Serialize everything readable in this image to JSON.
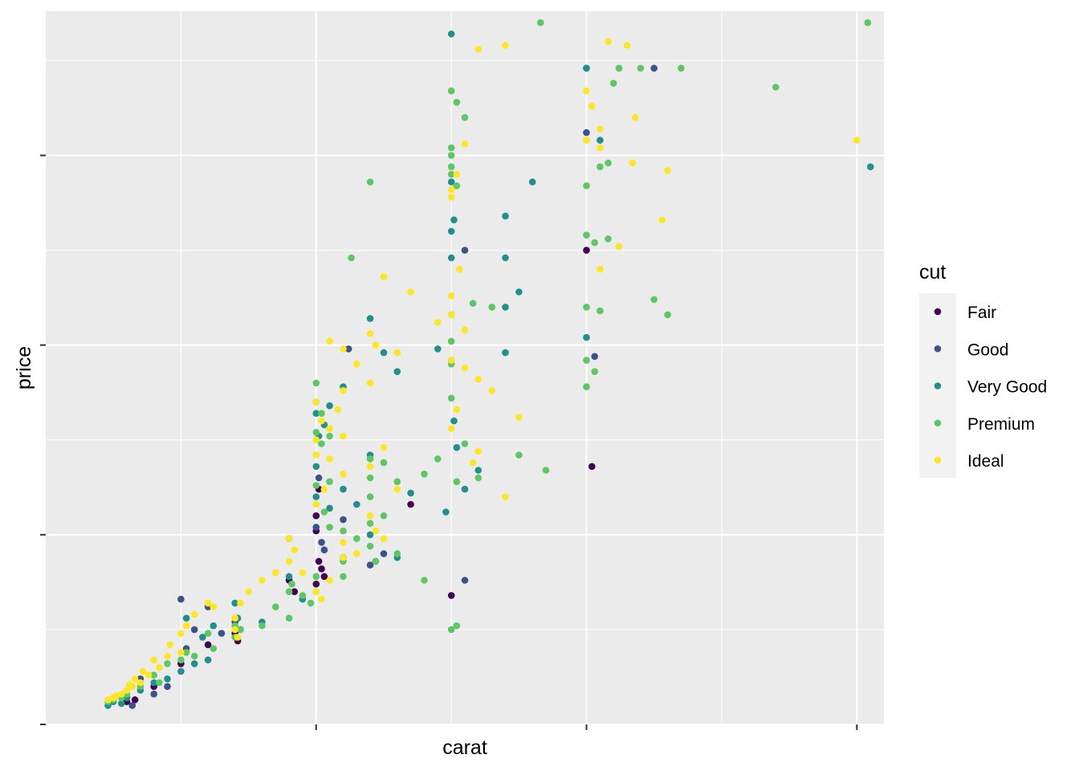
{
  "chart_data": {
    "type": "scatter",
    "title": "",
    "xlabel": "carat",
    "ylabel": "price",
    "x_tick_labels": [
      "",
      "",
      ""
    ],
    "y_tick_labels": [
      "",
      "",
      "",
      ""
    ],
    "xlim": [
      0.0,
      3.1
    ],
    "ylim": [
      0,
      18800
    ],
    "grid": true,
    "legend": {
      "title": "cut",
      "placement": "right",
      "entries": [
        "Fair",
        "Good",
        "Very Good",
        "Premium",
        "Ideal"
      ]
    },
    "colors": {
      "Fair": "#440154",
      "Good": "#3B528B",
      "Very Good": "#21908C",
      "Premium": "#5DC863",
      "Ideal": "#FDE725",
      "panel_bg": "#EBEBEB",
      "grid_major": "#FFFFFF"
    },
    "series": [
      {
        "name": "Fair",
        "points": [
          [
            0.7,
            2400
          ],
          [
            0.71,
            2200
          ],
          [
            0.9,
            3800
          ],
          [
            0.92,
            3500
          ],
          [
            1.0,
            5100
          ],
          [
            1.0,
            5500
          ],
          [
            1.01,
            4300
          ],
          [
            1.02,
            4100
          ],
          [
            1.0,
            3700
          ],
          [
            1.03,
            3900
          ],
          [
            1.1,
            4400
          ],
          [
            1.35,
            5800
          ],
          [
            1.5,
            3400
          ],
          [
            1.01,
            6200
          ],
          [
            2.0,
            12500
          ],
          [
            2.02,
            6800
          ],
          [
            0.5,
            1600
          ],
          [
            0.4,
            1000
          ],
          [
            0.3,
            600
          ],
          [
            0.33,
            650
          ],
          [
            0.6,
            2100
          ]
        ]
      },
      {
        "name": "Good",
        "points": [
          [
            0.5,
            3300
          ],
          [
            0.7,
            2700
          ],
          [
            1.0,
            5200
          ],
          [
            1.01,
            6500
          ],
          [
            1.02,
            4800
          ],
          [
            1.1,
            5400
          ],
          [
            1.2,
            4200
          ],
          [
            1.25,
            4500
          ],
          [
            1.12,
            9900
          ],
          [
            1.55,
            3800
          ],
          [
            1.55,
            12500
          ],
          [
            2.0,
            15600
          ],
          [
            2.03,
            9700
          ],
          [
            2.25,
            17300
          ],
          [
            0.9,
            4900
          ],
          [
            0.52,
            2000
          ],
          [
            0.55,
            2500
          ],
          [
            0.65,
            2400
          ],
          [
            0.6,
            3100
          ],
          [
            0.35,
            1200
          ],
          [
            0.4,
            800
          ],
          [
            0.45,
            1000
          ],
          [
            0.28,
            700
          ],
          [
            0.32,
            500
          ],
          [
            2.0,
            17300
          ],
          [
            1.03,
            4600
          ]
        ]
      },
      {
        "name": "Very Good",
        "points": [
          [
            1.5,
            18200
          ],
          [
            2.0,
            17300
          ],
          [
            2.05,
            15400
          ],
          [
            3.05,
            14700
          ],
          [
            1.8,
            14300
          ],
          [
            1.7,
            13400
          ],
          [
            1.7,
            11000
          ],
          [
            1.75,
            11400
          ],
          [
            1.5,
            14300
          ],
          [
            1.51,
            13300
          ],
          [
            1.5,
            13000
          ],
          [
            1.5,
            12300
          ],
          [
            1.2,
            10700
          ],
          [
            1.25,
            9800
          ],
          [
            1.3,
            9300
          ],
          [
            1.45,
            9900
          ],
          [
            1.5,
            9600
          ],
          [
            1.51,
            8000
          ],
          [
            1.52,
            7300
          ],
          [
            1.6,
            6700
          ],
          [
            1.55,
            6200
          ],
          [
            1.48,
            5600
          ],
          [
            1.35,
            6100
          ],
          [
            1.2,
            7100
          ],
          [
            1.1,
            8900
          ],
          [
            1.05,
            8400
          ],
          [
            1.0,
            8200
          ],
          [
            1.01,
            7600
          ],
          [
            1.0,
            6000
          ],
          [
            1.05,
            5700
          ],
          [
            1.15,
            5800
          ],
          [
            1.2,
            5000
          ],
          [
            1.22,
            4300
          ],
          [
            1.3,
            4400
          ],
          [
            0.9,
            3900
          ],
          [
            0.95,
            3300
          ],
          [
            1.1,
            6200
          ],
          [
            2.0,
            10200
          ],
          [
            1.7,
            12300
          ],
          [
            1.7,
            9800
          ],
          [
            0.7,
            3200
          ],
          [
            0.71,
            2800
          ],
          [
            0.72,
            2500
          ],
          [
            0.8,
            2700
          ],
          [
            0.6,
            1700
          ],
          [
            0.55,
            1600
          ],
          [
            0.5,
            1400
          ],
          [
            0.45,
            1200
          ],
          [
            0.4,
            1100
          ],
          [
            0.35,
            900
          ],
          [
            0.3,
            700
          ],
          [
            0.25,
            600
          ],
          [
            0.28,
            550
          ],
          [
            0.23,
            500
          ],
          [
            0.52,
            2800
          ],
          [
            0.58,
            2300
          ],
          [
            0.62,
            2600
          ],
          [
            1.0,
            8500
          ],
          [
            1.03,
            7900
          ],
          [
            1.0,
            6800
          ]
        ]
      },
      {
        "name": "Premium",
        "points": [
          [
            1.83,
            18500
          ],
          [
            3.04,
            18500
          ],
          [
            2.35,
            17300
          ],
          [
            2.2,
            17300
          ],
          [
            2.1,
            16900
          ],
          [
            2.12,
            17300
          ],
          [
            1.5,
            16700
          ],
          [
            1.52,
            16400
          ],
          [
            1.55,
            16000
          ],
          [
            1.5,
            15200
          ],
          [
            1.5,
            15000
          ],
          [
            1.5,
            14700
          ],
          [
            1.5,
            14500
          ],
          [
            1.52,
            14200
          ],
          [
            2.7,
            16800
          ],
          [
            2.0,
            14200
          ],
          [
            2.08,
            14800
          ],
          [
            2.05,
            14700
          ],
          [
            1.2,
            14300
          ],
          [
            1.13,
            12300
          ],
          [
            2.0,
            12900
          ],
          [
            2.03,
            12700
          ],
          [
            2.08,
            12800
          ],
          [
            2.25,
            11200
          ],
          [
            2.3,
            10800
          ],
          [
            2.05,
            10900
          ],
          [
            2.0,
            11000
          ],
          [
            1.58,
            11100
          ],
          [
            1.65,
            11000
          ],
          [
            1.5,
            10800
          ],
          [
            1.5,
            10100
          ],
          [
            1.5,
            9500
          ],
          [
            1.5,
            8600
          ],
          [
            1.55,
            7400
          ],
          [
            1.52,
            6400
          ],
          [
            1.6,
            6500
          ],
          [
            1.75,
            7100
          ],
          [
            1.85,
            6700
          ],
          [
            1.45,
            7000
          ],
          [
            1.4,
            6600
          ],
          [
            1.2,
            7000
          ],
          [
            1.2,
            6500
          ],
          [
            1.25,
            6900
          ],
          [
            1.3,
            6400
          ],
          [
            1.2,
            6000
          ],
          [
            1.2,
            5300
          ],
          [
            1.25,
            5500
          ],
          [
            1.1,
            5100
          ],
          [
            1.15,
            4900
          ],
          [
            1.2,
            4700
          ],
          [
            1.22,
            4300
          ],
          [
            1.3,
            4500
          ],
          [
            1.4,
            3800
          ],
          [
            1.5,
            2500
          ],
          [
            1.52,
            2600
          ],
          [
            2.0,
            9600
          ],
          [
            2.03,
            9300
          ],
          [
            2.0,
            8900
          ],
          [
            1.0,
            7700
          ],
          [
            1.02,
            7400
          ],
          [
            1.0,
            6300
          ],
          [
            1.05,
            6400
          ],
          [
            1.03,
            5600
          ],
          [
            1.05,
            5200
          ],
          [
            1.1,
            4300
          ],
          [
            1.1,
            3900
          ],
          [
            1.0,
            3900
          ],
          [
            1.0,
            3500
          ],
          [
            0.98,
            3200
          ],
          [
            0.95,
            3400
          ],
          [
            0.9,
            3500
          ],
          [
            0.91,
            3700
          ],
          [
            0.85,
            3100
          ],
          [
            0.9,
            2800
          ],
          [
            0.8,
            2600
          ],
          [
            0.7,
            2600
          ],
          [
            0.72,
            2500
          ],
          [
            0.7,
            2300
          ],
          [
            0.6,
            2400
          ],
          [
            0.62,
            2000
          ],
          [
            0.55,
            1800
          ],
          [
            0.52,
            1900
          ],
          [
            0.5,
            1700
          ],
          [
            0.45,
            1600
          ],
          [
            0.4,
            1300
          ],
          [
            0.42,
            1100
          ],
          [
            0.35,
            1000
          ],
          [
            0.3,
            800
          ],
          [
            0.25,
            650
          ],
          [
            0.23,
            600
          ],
          [
            0.28,
            700
          ],
          [
            1.0,
            9000
          ],
          [
            1.02,
            8200
          ],
          [
            1.05,
            7600
          ]
        ]
      },
      {
        "name": "Ideal",
        "points": [
          [
            1.6,
            17800
          ],
          [
            1.7,
            17900
          ],
          [
            2.08,
            18000
          ],
          [
            2.15,
            17900
          ],
          [
            2.0,
            16700
          ],
          [
            2.05,
            15700
          ],
          [
            2.02,
            16300
          ],
          [
            2.05,
            15200
          ],
          [
            2.17,
            14800
          ],
          [
            3.0,
            15400
          ],
          [
            2.3,
            14600
          ],
          [
            2.28,
            13300
          ],
          [
            2.12,
            12600
          ],
          [
            2.05,
            12000
          ],
          [
            1.55,
            15300
          ],
          [
            1.52,
            14500
          ],
          [
            1.5,
            14100
          ],
          [
            1.5,
            13900
          ],
          [
            1.53,
            12000
          ],
          [
            1.5,
            11300
          ],
          [
            1.45,
            10600
          ],
          [
            1.5,
            10800
          ],
          [
            1.35,
            11400
          ],
          [
            1.25,
            11800
          ],
          [
            1.5,
            9600
          ],
          [
            1.55,
            9400
          ],
          [
            1.6,
            9100
          ],
          [
            1.65,
            8800
          ],
          [
            1.75,
            8100
          ],
          [
            1.6,
            7200
          ],
          [
            1.5,
            7800
          ],
          [
            1.52,
            8300
          ],
          [
            1.3,
            9800
          ],
          [
            1.2,
            10300
          ],
          [
            1.1,
            9900
          ],
          [
            1.05,
            10100
          ],
          [
            1.15,
            9500
          ],
          [
            1.22,
            10000
          ],
          [
            1.2,
            9000
          ],
          [
            1.1,
            8800
          ],
          [
            1.0,
            8500
          ],
          [
            1.02,
            8000
          ],
          [
            1.08,
            8300
          ],
          [
            1.0,
            7500
          ],
          [
            1.05,
            7800
          ],
          [
            1.1,
            7600
          ],
          [
            1.0,
            7100
          ],
          [
            1.05,
            7000
          ],
          [
            1.03,
            6200
          ],
          [
            1.0,
            5800
          ],
          [
            1.1,
            6600
          ],
          [
            1.2,
            6800
          ],
          [
            1.25,
            7300
          ],
          [
            1.3,
            6200
          ],
          [
            1.2,
            5500
          ],
          [
            1.22,
            5100
          ],
          [
            1.25,
            4900
          ],
          [
            1.1,
            4800
          ],
          [
            1.1,
            4400
          ],
          [
            1.15,
            4500
          ],
          [
            1.05,
            3800
          ],
          [
            1.0,
            3500
          ],
          [
            1.02,
            3300
          ],
          [
            0.9,
            4900
          ],
          [
            0.92,
            4600
          ],
          [
            0.9,
            4300
          ],
          [
            0.95,
            4000
          ],
          [
            0.85,
            4000
          ],
          [
            0.8,
            3800
          ],
          [
            0.75,
            3500
          ],
          [
            0.72,
            3200
          ],
          [
            0.7,
            2800
          ],
          [
            0.7,
            2500
          ],
          [
            0.71,
            2300
          ],
          [
            0.6,
            3200
          ],
          [
            0.62,
            3100
          ],
          [
            0.55,
            2900
          ],
          [
            0.52,
            2600
          ],
          [
            0.5,
            2400
          ],
          [
            0.46,
            2100
          ],
          [
            0.45,
            1800
          ],
          [
            0.5,
            1900
          ],
          [
            0.4,
            1700
          ],
          [
            0.42,
            1500
          ],
          [
            0.38,
            1300
          ],
          [
            0.35,
            1100
          ],
          [
            0.32,
            1000
          ],
          [
            0.3,
            900
          ],
          [
            0.28,
            800
          ],
          [
            0.25,
            700
          ],
          [
            0.23,
            650
          ],
          [
            0.33,
            1200
          ],
          [
            0.36,
            1400
          ],
          [
            0.31,
            1050
          ],
          [
            0.26,
            750
          ],
          [
            1.58,
            6900
          ],
          [
            1.7,
            6000
          ],
          [
            1.55,
            10400
          ],
          [
            2.0,
            15400
          ],
          [
            2.18,
            16000
          ]
        ]
      }
    ]
  }
}
